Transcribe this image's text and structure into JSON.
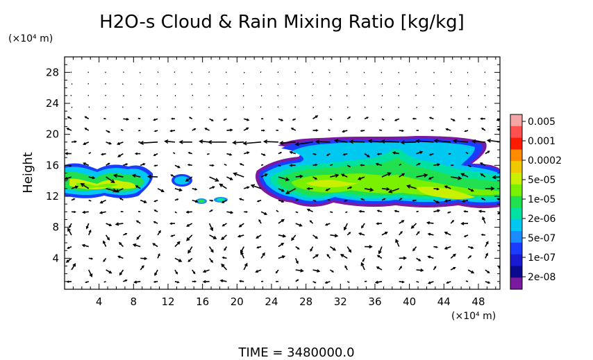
{
  "chart_data": {
    "type": "heatmap",
    "title": "H2O-s Cloud & Rain Mixing Ratio [kg/kg]",
    "xunit_label": "(×10⁴ m)",
    "yunit_label": "(×10⁴ m)",
    "ylabel": "Height",
    "xlim": [
      0,
      50.5
    ],
    "ylim": [
      0,
      30
    ],
    "xticks": [
      "4",
      "8",
      "12",
      "16",
      "20",
      "24",
      "28",
      "32",
      "36",
      "40",
      "44",
      "48"
    ],
    "xtick_values": [
      4,
      8,
      12,
      16,
      20,
      24,
      28,
      32,
      36,
      40,
      44,
      48
    ],
    "yticks": [
      "4",
      "8",
      "12",
      "16",
      "20",
      "24",
      "28"
    ],
    "ytick_values": [
      4,
      8,
      12,
      16,
      20,
      24,
      28
    ],
    "colorbar": {
      "labels": [
        "0.005",
        "0.001",
        "0.0002",
        "5e-05",
        "1e-05",
        "2e-06",
        "5e-07",
        "1e-07",
        "2e-08"
      ],
      "colors": [
        "#f4a6a6",
        "#ff5050",
        "#ff1a00",
        "#ff8c00",
        "#f0c800",
        "#c8f000",
        "#78f000",
        "#20e050",
        "#00e0a0",
        "#00c8f0",
        "#1a8cff",
        "#1a3cff",
        "#1a1ad2",
        "#0a0a90",
        "#7a1aa0"
      ]
    },
    "cloud_regions": [
      {
        "x": [
          0,
          10.5
        ],
        "y": [
          11.5,
          15.8
        ],
        "level": "2e-06 to 5e-05"
      },
      {
        "x": [
          13,
          15
        ],
        "y": [
          13.5,
          14.5
        ],
        "level": "5e-07"
      },
      {
        "x": [
          16,
          19.5
        ],
        "y": [
          11,
          11.6
        ],
        "level": "2e-06"
      },
      {
        "x": [
          24,
          50.5
        ],
        "y": [
          10.8,
          19.5
        ],
        "level": "2e-08 to 5e-05"
      }
    ],
    "wind_vectors": "arrows over full domain, strongest near y=19 and y=13"
  },
  "footer": {
    "time_label": "TIME  =  3480000.0"
  }
}
